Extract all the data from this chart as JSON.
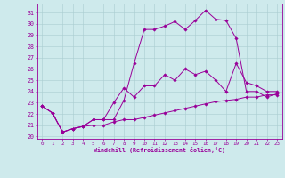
{
  "xlabel": "Windchill (Refroidissement éolien,°C)",
  "bg_color": "#ceeaec",
  "line_color": "#990099",
  "grid_color": "#aacdd0",
  "xlim": [
    -0.5,
    23.5
  ],
  "ylim": [
    19.8,
    31.8
  ],
  "yticks": [
    20,
    21,
    22,
    23,
    24,
    25,
    26,
    27,
    28,
    29,
    30,
    31
  ],
  "xticks": [
    0,
    1,
    2,
    3,
    4,
    5,
    6,
    7,
    8,
    9,
    10,
    11,
    12,
    13,
    14,
    15,
    16,
    17,
    18,
    19,
    20,
    21,
    22,
    23
  ],
  "curve1_x": [
    0,
    1,
    2,
    3,
    4,
    5,
    6,
    7,
    8,
    9,
    10,
    11,
    12,
    13,
    14,
    15,
    16,
    17,
    18,
    19,
    20,
    21,
    22,
    23
  ],
  "curve1_y": [
    22.7,
    22.1,
    20.4,
    20.7,
    20.9,
    21.5,
    21.5,
    21.5,
    23.2,
    26.5,
    29.5,
    29.5,
    29.8,
    30.2,
    29.5,
    30.3,
    31.2,
    30.4,
    30.3,
    28.7,
    24.0,
    24.0,
    23.5,
    23.8
  ],
  "curve2_x": [
    0,
    1,
    2,
    3,
    4,
    5,
    6,
    7,
    8,
    9,
    10,
    11,
    12,
    13,
    14,
    15,
    16,
    17,
    18,
    19,
    20,
    21,
    22,
    23
  ],
  "curve2_y": [
    22.7,
    22.1,
    20.4,
    20.7,
    20.9,
    21.5,
    21.5,
    23.0,
    24.3,
    23.5,
    24.5,
    24.5,
    25.5,
    25.0,
    26.0,
    25.5,
    25.8,
    25.0,
    24.0,
    26.5,
    24.8,
    24.5,
    24.0,
    24.0
  ],
  "curve3_x": [
    0,
    1,
    2,
    3,
    4,
    5,
    6,
    7,
    8,
    9,
    10,
    11,
    12,
    13,
    14,
    15,
    16,
    17,
    18,
    19,
    20,
    21,
    22,
    23
  ],
  "curve3_y": [
    22.7,
    22.1,
    20.4,
    20.7,
    20.9,
    21.0,
    21.0,
    21.3,
    21.5,
    21.5,
    21.7,
    21.9,
    22.1,
    22.3,
    22.5,
    22.7,
    22.9,
    23.1,
    23.2,
    23.3,
    23.5,
    23.5,
    23.7,
    23.7
  ]
}
